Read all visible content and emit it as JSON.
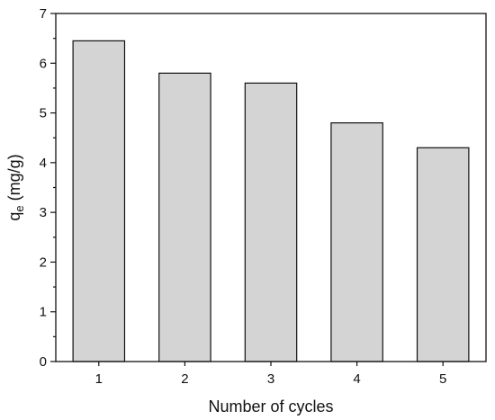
{
  "chart_data": {
    "type": "bar",
    "categories": [
      "1",
      "2",
      "3",
      "4",
      "5"
    ],
    "values": [
      6.45,
      5.8,
      5.6,
      4.8,
      4.3
    ],
    "title": "",
    "xlabel": "Number of cycles",
    "ylabel": {
      "main": "q",
      "sub": "e",
      "rest": " (mg/g)"
    },
    "ylim": [
      0,
      7
    ],
    "yticks": [
      "0",
      "1",
      "2",
      "3",
      "4",
      "5",
      "6",
      "7"
    ],
    "grid": false,
    "bar_color": "#d4d4d4",
    "edge_color": "#111111"
  }
}
